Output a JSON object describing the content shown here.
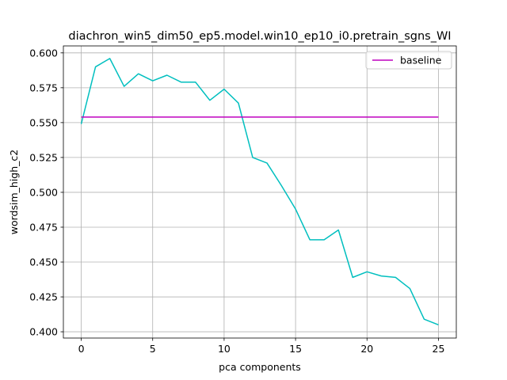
{
  "chart_data": {
    "type": "line",
    "title": "diachron_win5_dim50_ep5.model.win10_ep10_i0.pretrain_sgns_WI",
    "xlabel": "pca components",
    "ylabel": "wordsim_high_c2",
    "xlim": [
      -1.25,
      26.25
    ],
    "ylim": [
      0.3955,
      0.605
    ],
    "xticks": [
      0,
      5,
      10,
      15,
      20,
      25
    ],
    "yticks": [
      0.4,
      0.425,
      0.45,
      0.475,
      0.5,
      0.525,
      0.55,
      0.575,
      0.6
    ],
    "grid": true,
    "legend": {
      "placement": "top-right",
      "entries": [
        "baseline"
      ]
    },
    "series": [
      {
        "color": "#00bfbf",
        "x": [
          0,
          1,
          2,
          3,
          4,
          5,
          6,
          7,
          8,
          9,
          10,
          11,
          12,
          13,
          14,
          15,
          16,
          17,
          18,
          19,
          20,
          21,
          22,
          23,
          24,
          25
        ],
        "y": [
          0.549,
          0.59,
          0.596,
          0.576,
          0.585,
          0.58,
          0.584,
          0.579,
          0.579,
          0.566,
          0.574,
          0.564,
          0.525,
          0.521,
          0.505,
          0.488,
          0.466,
          0.466,
          0.473,
          0.439,
          0.443,
          0.44,
          0.439,
          0.431,
          0.409,
          0.405
        ]
      },
      {
        "name": "baseline",
        "color": "#bf00bf",
        "x": [
          0,
          25
        ],
        "y": [
          0.554,
          0.554
        ]
      }
    ]
  }
}
